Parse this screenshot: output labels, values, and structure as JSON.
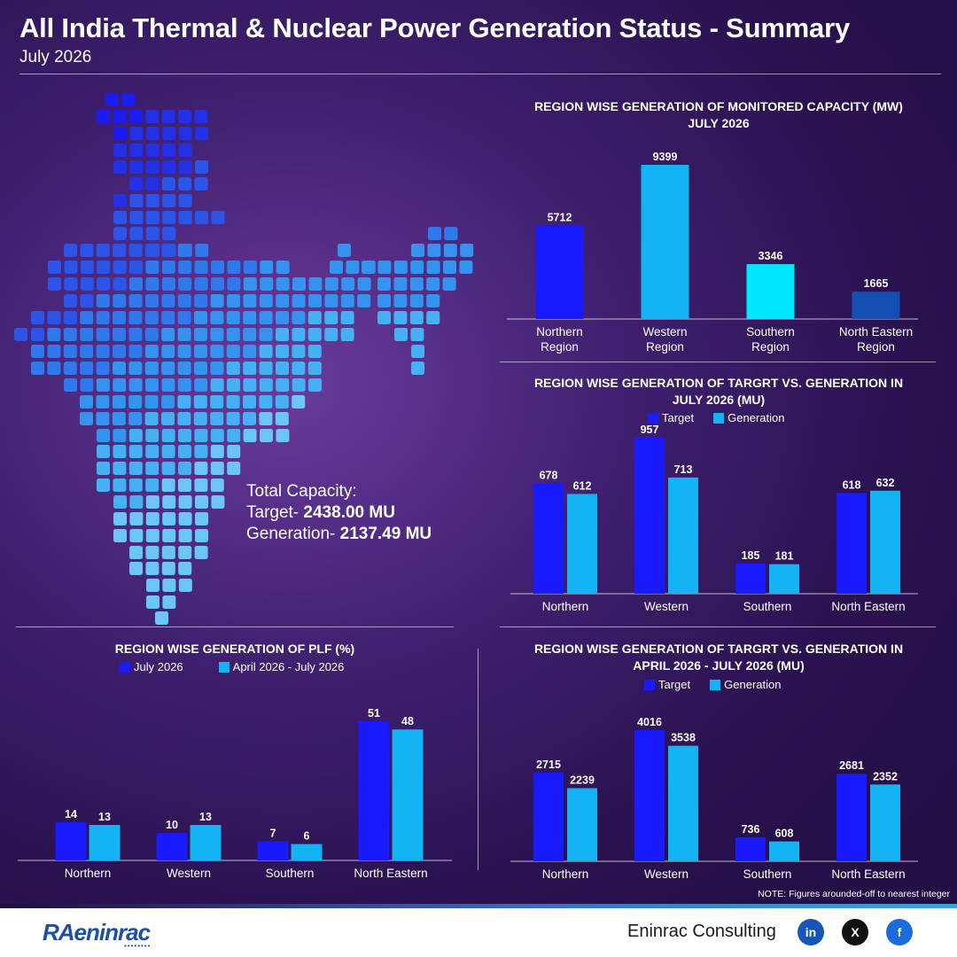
{
  "header": {
    "title": "All India Thermal & Nuclear Power Generation Status - Summary",
    "subtitle": "July 2026"
  },
  "summary": {
    "heading": "Total Capacity:",
    "target_label": "Target-",
    "target_value": "2438.00 MU",
    "generation_label": "Generation-",
    "generation_value": "2137.49 MU"
  },
  "colors": {
    "target": "#1a1aff",
    "generation": "#14b4f4",
    "cyan": "#00e6ff",
    "navy": "#1450b4"
  },
  "chart_data": [
    {
      "id": "monitored_capacity",
      "type": "bar",
      "title_lines": [
        "REGION WISE GENERATION OF MONITORED CAPACITY (MW)",
        "JULY 2026"
      ],
      "categories": [
        [
          "Northern",
          "Region"
        ],
        [
          "Western",
          "Region"
        ],
        [
          "Southern",
          "Region"
        ],
        [
          "North Eastern",
          "Region"
        ]
      ],
      "values": [
        5712,
        9399,
        3346,
        1665
      ],
      "bar_colors": [
        "#1a1aff",
        "#14b4f4",
        "#00e6ff",
        "#1450b4"
      ],
      "ylim": [
        0,
        9399
      ]
    },
    {
      "id": "target_vs_gen_july",
      "type": "bar",
      "title_lines": [
        "REGION WISE GENERATION OF TARGRT VS. GENERATION IN",
        "JULY 2026 (MU)"
      ],
      "categories": [
        "Northern",
        "Western",
        "Southern",
        "North Eastern"
      ],
      "series": [
        {
          "name": "Target",
          "values": [
            678,
            957,
            185,
            618
          ]
        },
        {
          "name": "Generation",
          "values": [
            612,
            713,
            181,
            632
          ]
        }
      ],
      "ylim": [
        0,
        957
      ]
    },
    {
      "id": "plf",
      "type": "bar",
      "title_lines": [
        "REGION WISE GENERATION OF PLF (%)"
      ],
      "categories": [
        "Northern",
        "Western",
        "Southern",
        "North Eastern"
      ],
      "series": [
        {
          "name": "July 2026",
          "values": [
            14,
            10,
            7,
            51
          ]
        },
        {
          "name": "April 2026 - July 2026",
          "values": [
            13,
            13,
            6,
            48
          ]
        }
      ],
      "ylim": [
        0,
        51
      ]
    },
    {
      "id": "target_vs_gen_ytd",
      "type": "bar",
      "title_lines": [
        "REGION WISE GENERATION OF TARGRT VS. GENERATION IN",
        "APRIL 2026 - JULY 2026 (MU)"
      ],
      "categories": [
        "Northern",
        "Western",
        "Southern",
        "North Eastern"
      ],
      "series": [
        {
          "name": "Target",
          "values": [
            2715,
            4016,
            736,
            2681
          ]
        },
        {
          "name": "Generation",
          "values": [
            2239,
            3538,
            608,
            2352
          ]
        }
      ],
      "ylim": [
        0,
        4016
      ]
    }
  ],
  "note": "NOTE: Figures arounded-off to nearest integer",
  "footer": {
    "logo_text": "RAeninrac",
    "company": "Eninrac Consulting",
    "social": [
      "in",
      "X",
      "f"
    ],
    "social_icons": [
      "linkedin-icon",
      "x-icon",
      "facebook-icon"
    ]
  }
}
